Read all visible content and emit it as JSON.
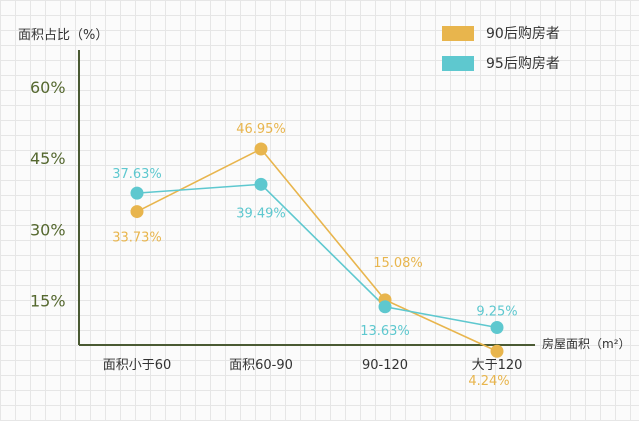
{
  "chart_data": {
    "type": "line",
    "ylabel": "面积占比（%）",
    "xlabel": "房屋面积（m²）",
    "categories": [
      "面积小于60",
      "面积60-90",
      "90-120",
      "大于120"
    ],
    "yticks": [
      "60%",
      "45%",
      "30%",
      "15%"
    ],
    "ytick_values": [
      60,
      45,
      30,
      15
    ],
    "ylim": [
      0,
      65
    ],
    "grid": true,
    "legend_position": "top-right",
    "series": [
      {
        "name": "90后购房者",
        "color": "#e8b54d",
        "values": [
          33.73,
          46.95,
          15.08,
          4.24
        ],
        "labels": [
          "33.73%",
          "46.95%",
          "15.08%",
          "4.24%"
        ]
      },
      {
        "name": "95后购房者",
        "color": "#5ec8cf",
        "values": [
          37.63,
          39.49,
          13.63,
          9.25
        ],
        "labels": [
          "37.63%",
          "39.49%",
          "13.63%",
          "9.25%"
        ]
      }
    ]
  }
}
